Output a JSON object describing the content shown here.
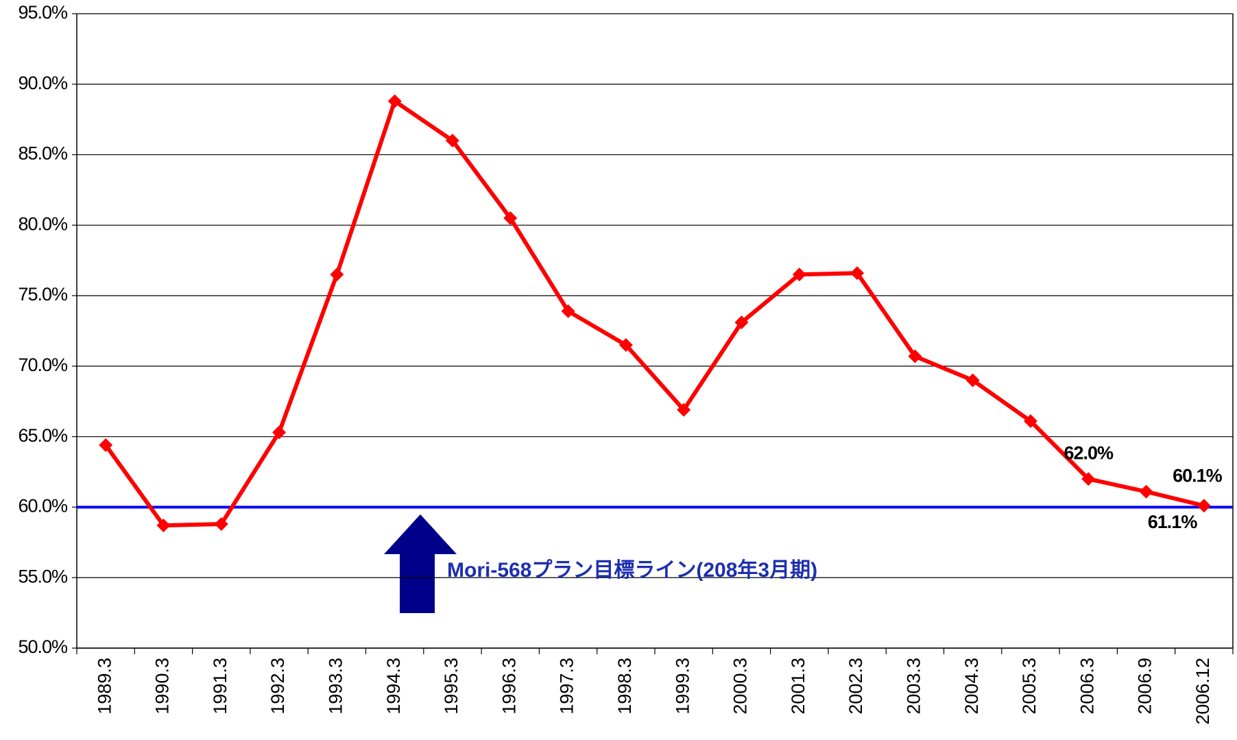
{
  "chart_data": {
    "type": "line",
    "categories": [
      "1989.3",
      "1990.3",
      "1991.3",
      "1992.3",
      "1993.3",
      "1994.3",
      "1995.3",
      "1996.3",
      "1997.3",
      "1998.3",
      "1999.3",
      "2000.3",
      "2001.3",
      "2002.3",
      "2003.3",
      "2004.3",
      "2005.3",
      "2006.3",
      "2006.9",
      "2006.12"
    ],
    "series": [
      {
        "color": "#ff0000",
        "values": [
          64.4,
          58.7,
          58.8,
          65.3,
          76.5,
          88.8,
          86.0,
          80.5,
          73.9,
          71.5,
          66.9,
          73.1,
          76.5,
          76.6,
          70.7,
          69.0,
          66.1,
          62.0,
          61.1,
          60.1
        ],
        "value_labels": [
          null,
          null,
          null,
          null,
          null,
          null,
          null,
          null,
          null,
          null,
          null,
          null,
          null,
          null,
          null,
          null,
          null,
          "62.0%",
          "61.1%",
          "60.1%"
        ]
      }
    ],
    "ylim": [
      50,
      95
    ],
    "yticks": [
      {
        "value": 50,
        "label": "50.0%"
      },
      {
        "value": 55,
        "label": "55.0%"
      },
      {
        "value": 60,
        "label": "60.0%"
      },
      {
        "value": 65,
        "label": "65.0%"
      },
      {
        "value": 70,
        "label": "70.0%"
      },
      {
        "value": 75,
        "label": "75.0%"
      },
      {
        "value": 80,
        "label": "80.0%"
      },
      {
        "value": 85,
        "label": "85.0%"
      },
      {
        "value": 90,
        "label": "90.0%"
      },
      {
        "value": 95,
        "label": "95.0%"
      }
    ],
    "grid": true,
    "target_line": {
      "value": 60,
      "color": "#0000ff",
      "label": "Mori-568プラン目標ライン(208年3月期)"
    }
  }
}
